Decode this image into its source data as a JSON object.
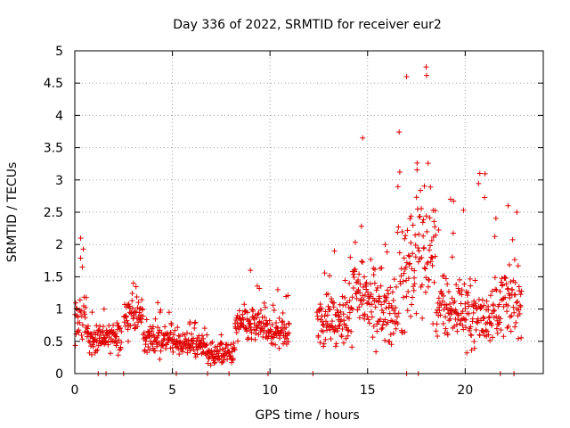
{
  "chart_data": {
    "type": "scatter",
    "title": "Day 336 of 2022, SRMTID for receiver eur2",
    "xlabel": "GPS time / hours",
    "ylabel": "SRMTID / TECUs",
    "xlim": [
      0,
      24
    ],
    "ylim": [
      0,
      5
    ],
    "xticks": [
      0,
      5,
      10,
      15,
      20
    ],
    "yticks": [
      0,
      0.5,
      1,
      1.5,
      2,
      2.5,
      3,
      3.5,
      4,
      4.5,
      5
    ],
    "grid": true,
    "marker": "+",
    "marker_color": "#e00000",
    "series": [
      {
        "name": "SRMTID",
        "color": "#e00000",
        "segments": [
          {
            "x0": 0.0,
            "x1": 0.6,
            "center": 0.85,
            "spread": 0.3,
            "peak": 2.1
          },
          {
            "x0": 0.6,
            "x1": 2.4,
            "center": 0.55,
            "spread": 0.2,
            "peak": 1.0
          },
          {
            "x0": 2.5,
            "x1": 3.5,
            "center": 0.9,
            "spread": 0.25,
            "peak": 1.4
          },
          {
            "x0": 3.5,
            "x1": 5.0,
            "center": 0.55,
            "spread": 0.2,
            "peak": 1.1
          },
          {
            "x0": 5.0,
            "x1": 6.8,
            "center": 0.45,
            "spread": 0.15,
            "peak": 0.8
          },
          {
            "x0": 6.8,
            "x1": 8.2,
            "center": 0.3,
            "spread": 0.15,
            "peak": 0.6
          },
          {
            "x0": 8.2,
            "x1": 9.8,
            "center": 0.75,
            "spread": 0.25,
            "peak": 1.6
          },
          {
            "x0": 9.8,
            "x1": 11.0,
            "center": 0.65,
            "spread": 0.2,
            "peak": 1.3
          },
          {
            "x0": 12.4,
            "x1": 14.2,
            "center": 0.8,
            "spread": 0.35,
            "peak": 1.9
          },
          {
            "x0": 14.2,
            "x1": 15.3,
            "center": 1.3,
            "spread": 0.5,
            "peak": 3.65
          },
          {
            "x0": 15.3,
            "x1": 16.5,
            "center": 0.95,
            "spread": 0.4,
            "peak": 2.0
          },
          {
            "x0": 16.5,
            "x1": 17.5,
            "center": 1.6,
            "spread": 0.8,
            "peak": 4.6
          },
          {
            "x0": 17.5,
            "x1": 18.5,
            "center": 2.0,
            "spread": 0.9,
            "peak": 4.75
          },
          {
            "x0": 18.5,
            "x1": 20.0,
            "center": 1.0,
            "spread": 0.4,
            "peak": 2.7
          },
          {
            "x0": 20.0,
            "x1": 21.5,
            "center": 0.9,
            "spread": 0.4,
            "peak": 3.1
          },
          {
            "x0": 21.5,
            "x1": 22.9,
            "center": 1.1,
            "spread": 0.4,
            "peak": 2.6
          }
        ],
        "zero_points": [
          1.2,
          1.6,
          2.5,
          5.2,
          6.8,
          7.9,
          9.9,
          12.2,
          17.0,
          17.6,
          21.8,
          22.5
        ]
      }
    ]
  }
}
